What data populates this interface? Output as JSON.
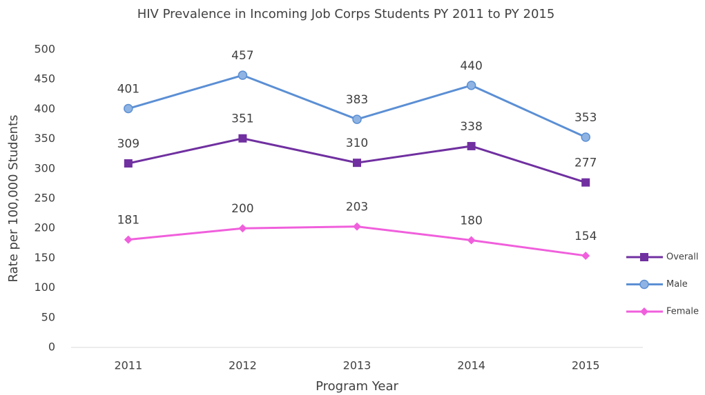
{
  "chart_data": {
    "type": "line",
    "title": "HIV Prevalence in Incoming Job Corps Students PY 2011 to PY 2015",
    "x_label": "Program Year",
    "y_label": "Rate per 100,000 Students",
    "categories": [
      "2011",
      "2012",
      "2013",
      "2014",
      "2015"
    ],
    "series": [
      {
        "name": "Overall",
        "color": "#7030a0",
        "marker": "square",
        "values": [
          309,
          351,
          310,
          338,
          277
        ]
      },
      {
        "name": "Male",
        "color": "#5b8fd4",
        "marker": "circle",
        "values": [
          401,
          457,
          383,
          440,
          353
        ]
      },
      {
        "name": "Female",
        "color": "#f05fdc",
        "marker": "diamond",
        "values": [
          181,
          200,
          203,
          180,
          154
        ]
      }
    ],
    "ylim": [
      0,
      500
    ],
    "yticks": [
      0,
      50,
      100,
      150,
      200,
      250,
      300,
      350,
      400,
      450,
      500
    ],
    "grid": false,
    "legend": "right"
  }
}
